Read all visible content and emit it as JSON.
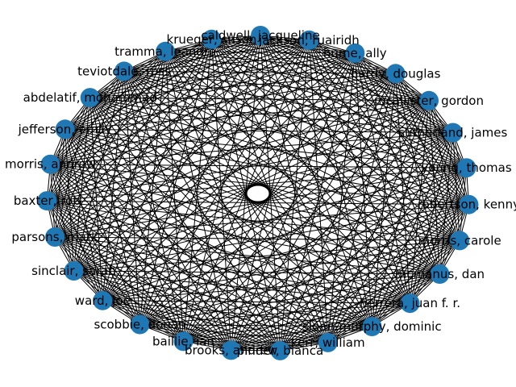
{
  "graph": {
    "type": "complete-graph",
    "layout": "circular",
    "node_color": "#1f77b4",
    "edge_color": "#000000",
    "nodes": [
      "jackson, ruairidh",
      "hume, ally",
      "hardy, douglas",
      "mcallister, gordon",
      "sutherland, james",
      "young, thomas",
      "robertson, kenny",
      "morris, carole",
      "mcmanus, dan",
      "herrera, juan f. r.",
      "sloan-murphy, dominic",
      "kerr, william",
      "pinder, bianca",
      "brooks, andrew",
      "baillie, ian",
      "scobbie, donan",
      "ward, joe",
      "sinclair, sarah",
      "parsons, mark",
      "baxter, rob",
      "morris, andrew",
      "jefferson, emily",
      "abdelatif, mohammad",
      "teviotdale, ross",
      "tramma, leandro",
      "krueger, susan",
      "caldwell, jacqueline"
    ]
  }
}
